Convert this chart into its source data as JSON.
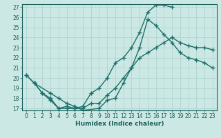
{
  "title": "",
  "xlabel": "Humidex (Indice chaleur)",
  "ylabel": "",
  "bg_color": "#cce8e4",
  "grid_color": "#b0d4d0",
  "line_color": "#1a6e68",
  "xlim": [
    -0.5,
    23.5
  ],
  "ylim": [
    16.8,
    27.3
  ],
  "yticks": [
    17,
    18,
    19,
    20,
    21,
    22,
    23,
    24,
    25,
    26,
    27
  ],
  "xticks": [
    0,
    1,
    2,
    3,
    4,
    5,
    6,
    7,
    8,
    9,
    10,
    11,
    12,
    13,
    14,
    15,
    16,
    17,
    18,
    19,
    20,
    21,
    22,
    23
  ],
  "line1_x": [
    0,
    1,
    2,
    3,
    4,
    5,
    6,
    7,
    8,
    9,
    10,
    11,
    12,
    13,
    14,
    15,
    16,
    17,
    18,
    19,
    20,
    21,
    22,
    23
  ],
  "line1_y": [
    20.3,
    19.5,
    18.5,
    17.8,
    17.0,
    17.0,
    17.0,
    17.0,
    17.5,
    17.5,
    18.3,
    19.0,
    20.0,
    21.0,
    22.0,
    22.5,
    23.0,
    23.5,
    24.0,
    23.5,
    23.2,
    23.0,
    23.0,
    22.8
  ],
  "line2_x": [
    1,
    2,
    3,
    4,
    5,
    6,
    7,
    8,
    9,
    10,
    11,
    12,
    13,
    14,
    15,
    16,
    17,
    18
  ],
  "line2_y": [
    19.5,
    18.5,
    18.0,
    17.0,
    17.2,
    17.0,
    17.2,
    18.5,
    19.0,
    20.0,
    21.5,
    22.0,
    23.0,
    24.5,
    26.5,
    27.2,
    27.2,
    27.0
  ],
  "line3_x": [
    0,
    1,
    3,
    4,
    5,
    6,
    7,
    9,
    10,
    11,
    12,
    13,
    14,
    15,
    16,
    17,
    18,
    19,
    20,
    21,
    22,
    23
  ],
  "line3_y": [
    20.3,
    19.5,
    18.5,
    18.0,
    17.5,
    17.2,
    16.8,
    17.0,
    17.8,
    18.0,
    19.5,
    21.0,
    23.0,
    25.8,
    25.2,
    24.3,
    23.5,
    22.5,
    22.0,
    21.8,
    21.5,
    21.0
  ],
  "marker": "+",
  "markersize": 4,
  "linewidth": 1.0,
  "font_color": "#1a5f5a",
  "tick_fontsize": 5.5,
  "xlabel_fontsize": 6.5
}
